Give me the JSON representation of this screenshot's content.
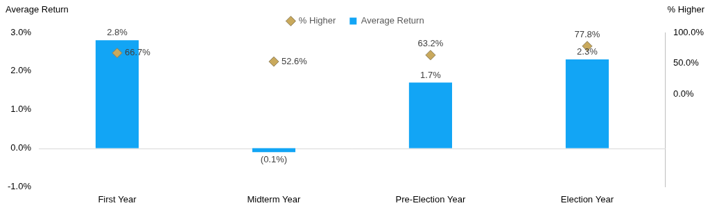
{
  "chart_data": {
    "type": "bar",
    "ylabel": "Average Return",
    "y2label": "% Higher",
    "categories": [
      "First Year",
      "Midterm Year",
      "Pre-Election Year",
      "Election Year"
    ],
    "series": [
      {
        "name": "Average Return",
        "type": "bar",
        "color": "#12a5f5",
        "values": [
          2.8,
          -0.1,
          1.7,
          2.3
        ],
        "value_labels": [
          "2.8%",
          "(0.1%)",
          "1.7%",
          "2.3%"
        ]
      },
      {
        "name": "% Higher",
        "type": "scatter",
        "marker": "diamond",
        "color": "#c9a95c",
        "axis": "y2",
        "values": [
          66.7,
          52.6,
          63.2,
          77.8
        ],
        "value_labels": [
          "66.7%",
          "52.6%",
          "63.2%",
          "77.8%"
        ]
      }
    ],
    "ylim": [
      -1,
      3
    ],
    "yticks": [
      {
        "value": -1,
        "label": "-1.0%"
      },
      {
        "value": 0,
        "label": "0.0%"
      },
      {
        "value": 1,
        "label": "1.0%"
      },
      {
        "value": 2,
        "label": "2.0%"
      },
      {
        "value": 3,
        "label": "3.0%"
      }
    ],
    "y2lim": [
      -151.1,
      100
    ],
    "y2ticks": [
      {
        "value": 0,
        "label": "0.0%"
      },
      {
        "value": 50,
        "label": "50.0%"
      },
      {
        "value": 100,
        "label": "100.0%"
      }
    ],
    "grid": false,
    "legend": "top",
    "data_labels": true
  }
}
